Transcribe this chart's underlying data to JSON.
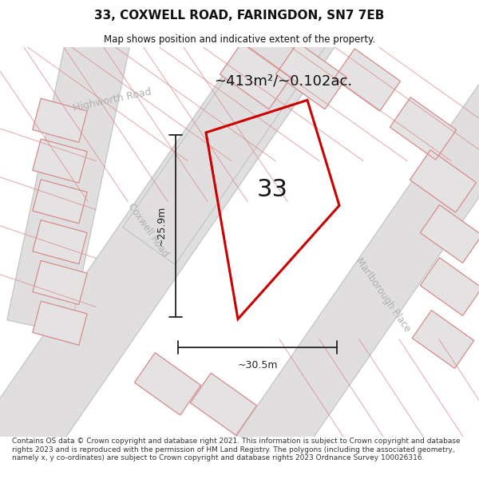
{
  "title": "33, COXWELL ROAD, FARINGDON, SN7 7EB",
  "subtitle": "Map shows position and indicative extent of the property.",
  "area_label": "~413m²/~0.102ac.",
  "number_label": "33",
  "dim_h": "~25.9m",
  "dim_w": "~30.5m",
  "street_highworth": "Highworth Road",
  "street_coxwell": "Coxwell Road",
  "street_marlborough": "Marlborough Place",
  "footer": "Contains OS data © Crown copyright and database right 2021. This information is subject to Crown copyright and database rights 2023 and is reproduced with the permission of HM Land Registry. The polygons (including the associated geometry, namely x, y co-ordinates) are subject to Crown copyright and database rights 2023 Ordnance Survey 100026316.",
  "map_bg": "#f2f0f0",
  "road_gray": "#e0dede",
  "block_fill": "#e4e2e2",
  "block_edge": "#cccccc",
  "pink": "#d89090",
  "red_plot": "#cc0000",
  "dim_color": "#222222",
  "street_color": "#b0b0b0",
  "title_color": "#111111",
  "footer_color": "#333333"
}
